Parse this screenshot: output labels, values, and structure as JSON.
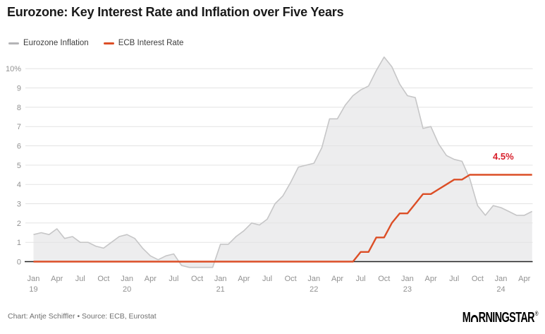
{
  "title": "Eurozone: Key Interest Rate and Inflation over Five Years",
  "legend": {
    "items": [
      {
        "label": "Eurozone Inflation",
        "color": "#b4b4b6"
      },
      {
        "label": "ECB Interest Rate",
        "color": "#dc4e26"
      }
    ]
  },
  "annotation": {
    "text": "4.5%",
    "color": "#d8202c"
  },
  "footer": {
    "credit": "Chart: Antje Schiffler • Source: ECB, Eurostat"
  },
  "logo": {
    "pre": "M",
    "post": "RNINGSTAR",
    "registered": "®"
  },
  "chart_data": {
    "type": "area",
    "title": "Eurozone: Key Interest Rate and Inflation over Five Years",
    "x_start": "Jan 2019",
    "x_end": "May 2024",
    "x_frequency": "monthly",
    "ylim": [
      0,
      10.6
    ],
    "grid": true,
    "legend_position": "top-left",
    "y_ticks": [
      {
        "v": 0,
        "label": "0"
      },
      {
        "v": 1,
        "label": "1"
      },
      {
        "v": 2,
        "label": "2"
      },
      {
        "v": 3,
        "label": "3"
      },
      {
        "v": 4,
        "label": "4"
      },
      {
        "v": 5,
        "label": "5"
      },
      {
        "v": 6,
        "label": "6"
      },
      {
        "v": 7,
        "label": "7"
      },
      {
        "v": 8,
        "label": "8"
      },
      {
        "v": 9,
        "label": "9"
      },
      {
        "v": 10,
        "label": "10%"
      }
    ],
    "x_ticks": [
      {
        "i": 0,
        "month": "Jan",
        "year": "19"
      },
      {
        "i": 3,
        "month": "Apr"
      },
      {
        "i": 6,
        "month": "Jul"
      },
      {
        "i": 9,
        "month": "Oct"
      },
      {
        "i": 12,
        "month": "Jan",
        "year": "20"
      },
      {
        "i": 15,
        "month": "Apr"
      },
      {
        "i": 18,
        "month": "Jul"
      },
      {
        "i": 21,
        "month": "Oct"
      },
      {
        "i": 24,
        "month": "Jan",
        "year": "21"
      },
      {
        "i": 27,
        "month": "Apr"
      },
      {
        "i": 30,
        "month": "Jul"
      },
      {
        "i": 33,
        "month": "Oct"
      },
      {
        "i": 36,
        "month": "Jan",
        "year": "22"
      },
      {
        "i": 39,
        "month": "Apr"
      },
      {
        "i": 42,
        "month": "Jul"
      },
      {
        "i": 45,
        "month": "Oct"
      },
      {
        "i": 48,
        "month": "Jan",
        "year": "23"
      },
      {
        "i": 51,
        "month": "Apr"
      },
      {
        "i": 54,
        "month": "Jul"
      },
      {
        "i": 57,
        "month": "Oct"
      },
      {
        "i": 60,
        "month": "Jan",
        "year": "24"
      },
      {
        "i": 63,
        "month": "Apr"
      }
    ],
    "series": [
      {
        "name": "Eurozone Inflation",
        "type": "area",
        "color": "#c6c6c7",
        "fill": "#ededee",
        "values": [
          1.4,
          1.5,
          1.4,
          1.7,
          1.2,
          1.3,
          1.0,
          1.0,
          0.8,
          0.7,
          1.0,
          1.3,
          1.4,
          1.2,
          0.7,
          0.3,
          0.1,
          0.3,
          0.4,
          -0.2,
          -0.3,
          -0.3,
          -0.3,
          -0.3,
          0.9,
          0.9,
          1.3,
          1.6,
          2.0,
          1.9,
          2.2,
          3.0,
          3.4,
          4.1,
          4.9,
          5.0,
          5.1,
          5.9,
          7.4,
          7.4,
          8.1,
          8.6,
          8.9,
          9.1,
          9.9,
          10.6,
          10.1,
          9.2,
          8.6,
          8.5,
          6.9,
          7.0,
          6.1,
          5.5,
          5.3,
          5.2,
          4.3,
          2.9,
          2.4,
          2.9,
          2.8,
          2.6,
          2.4,
          2.4,
          2.6
        ]
      },
      {
        "name": "ECB Interest Rate",
        "type": "line",
        "color": "#dc4e26",
        "values": [
          0,
          0,
          0,
          0,
          0,
          0,
          0,
          0,
          0,
          0,
          0,
          0,
          0,
          0,
          0,
          0,
          0,
          0,
          0,
          0,
          0,
          0,
          0,
          0,
          0,
          0,
          0,
          0,
          0,
          0,
          0,
          0,
          0,
          0,
          0,
          0,
          0,
          0,
          0,
          0,
          0,
          0,
          0.5,
          0.5,
          1.25,
          1.25,
          2.0,
          2.5,
          2.5,
          3.0,
          3.5,
          3.5,
          3.75,
          4.0,
          4.25,
          4.25,
          4.5,
          4.5,
          4.5,
          4.5,
          4.5,
          4.5,
          4.5,
          4.5,
          4.5
        ]
      }
    ],
    "colors": {
      "gridline": "#e3e3e3",
      "zero_axis": "#222222",
      "axis_text": "#919191"
    }
  }
}
